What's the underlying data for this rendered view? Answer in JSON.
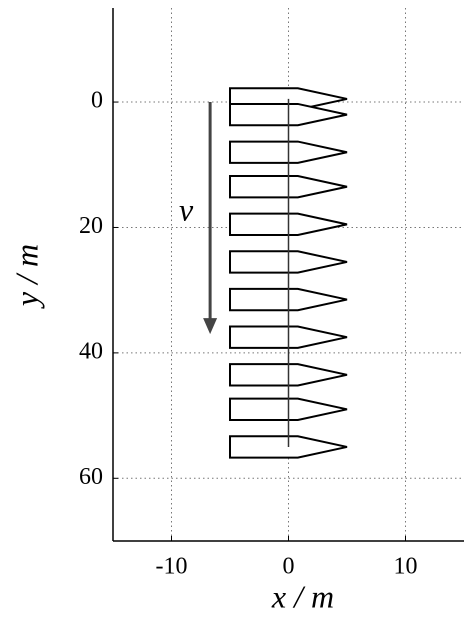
{
  "chart_data": {
    "type": "formation",
    "x_label": "x / m",
    "y_label": "y / m",
    "x": [
      0,
      0,
      0,
      0,
      0,
      0,
      0,
      0,
      0,
      0,
      0
    ],
    "values": [
      -0.5,
      2,
      8,
      13.5,
      19.5,
      25.5,
      31.5,
      37.5,
      43.5,
      49,
      55
    ],
    "ship_length": 10,
    "ship_width": 3.4,
    "arrow": {
      "label": "v",
      "x": -6.7,
      "y": [
        0,
        37
      ]
    },
    "xlim": [
      -15,
      15
    ],
    "ylim": [
      -15,
      70
    ],
    "y_inverted": true,
    "xticks": [
      -10,
      0,
      10
    ],
    "yticks": [
      0,
      20,
      40,
      60
    ],
    "grid": true,
    "color": "#000000"
  }
}
